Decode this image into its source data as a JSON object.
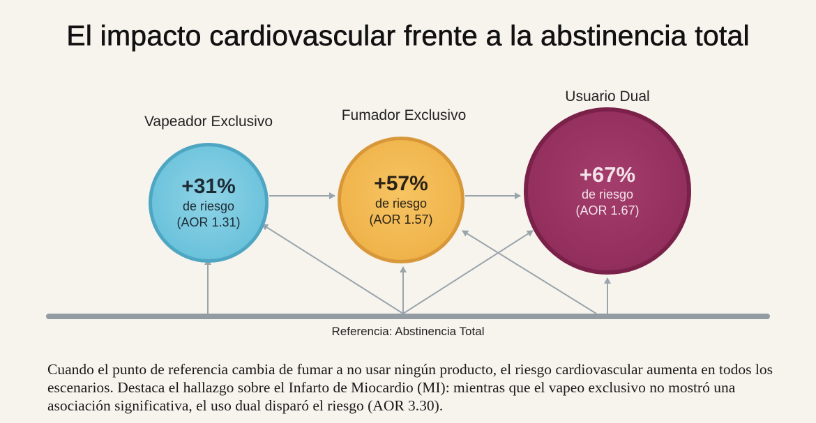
{
  "title": "El impacto cardiovascular frente a la abstinencia total",
  "groups": [
    {
      "label": "Vapeador Exclusivo",
      "value": "+31%",
      "subtitle": "de riesgo",
      "aor": "(AOR 1.31)",
      "color": "#6cc3dc"
    },
    {
      "label": "Fumador Exclusivo",
      "value": "+57%",
      "subtitle": "de riesgo",
      "aor": "(AOR 1.57)",
      "color": "#f0b44b"
    },
    {
      "label": "Usuario Dual",
      "value": "+67%",
      "subtitle": "de riesgo",
      "aor": "(AOR 1.67)",
      "color": "#932f5d"
    }
  ],
  "reference": "Referencia: Abstinencia Total",
  "description": "Cuando el punto de referencia cambia de fumar a no usar ningún producto, el riesgo cardiovascular aumenta en todos los escenarios. Destaca el hallazgo sobre el Infarto de Miocardio (MI): mientras que el vapeo exclusivo no mostró una asociación significativa, el uso dual disparó el riesgo (AOR 3.30).",
  "colors": {
    "arrow": "#9aa4ab",
    "baseline": "#939ca3",
    "background": "#f7f4ee"
  }
}
